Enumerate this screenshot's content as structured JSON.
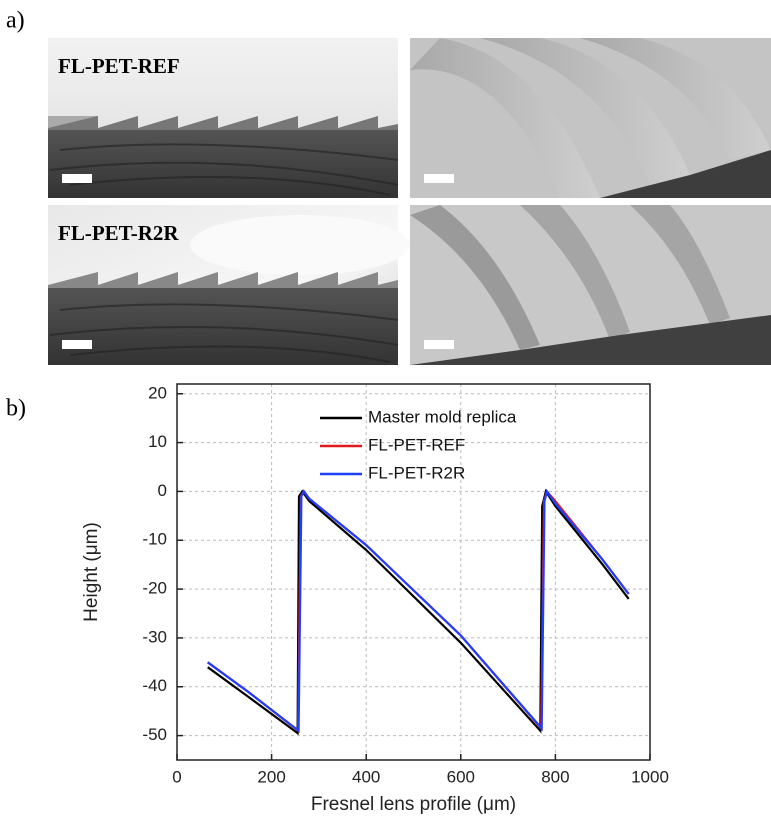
{
  "panel_labels": [
    "a)",
    "b)"
  ],
  "images": [
    {
      "label": "FL-PET-REF"
    },
    {
      "label": "FL-PET-R2R"
    }
  ],
  "chart_data": {
    "type": "line",
    "xlabel": "Fresnel lens profile (μm)",
    "ylabel": "Height (μm)",
    "xlim": [
      0,
      1000
    ],
    "ylim": [
      -55,
      22
    ],
    "xticks": [
      0,
      200,
      400,
      600,
      800,
      1000
    ],
    "yticks": [
      -50,
      -40,
      -30,
      -20,
      -10,
      0,
      10,
      20
    ],
    "grid": true,
    "legend": "upper right",
    "series": [
      {
        "name": "Master mold replica",
        "color": "#000000",
        "x": [
          65,
          150,
          255,
          258,
          265,
          280,
          400,
          600,
          768,
          772,
          780,
          800,
          900,
          955
        ],
        "values": [
          -36,
          -42,
          -49.5,
          -1,
          0,
          -2,
          -12,
          -31,
          -49,
          -3,
          0,
          -3,
          -15,
          -22
        ]
      },
      {
        "name": "FL-PET-REF",
        "color": "#e31a1c",
        "x": [
          65,
          150,
          256,
          262,
          268,
          280,
          400,
          600,
          770,
          776,
          782,
          800,
          900,
          955
        ],
        "values": [
          -35,
          -41,
          -49,
          -1,
          0,
          -1.5,
          -11,
          -29.5,
          -48.5,
          -2,
          0,
          -2,
          -14,
          -21
        ]
      },
      {
        "name": "FL-PET-R2R",
        "color": "#1f3fff",
        "x": [
          65,
          150,
          257,
          263,
          268,
          280,
          400,
          600,
          771,
          777,
          782,
          800,
          900,
          955
        ],
        "values": [
          -35,
          -41,
          -49,
          -1,
          0,
          -1.5,
          -11,
          -29.5,
          -48.5,
          -2,
          0,
          -2.5,
          -14,
          -21
        ]
      }
    ]
  }
}
